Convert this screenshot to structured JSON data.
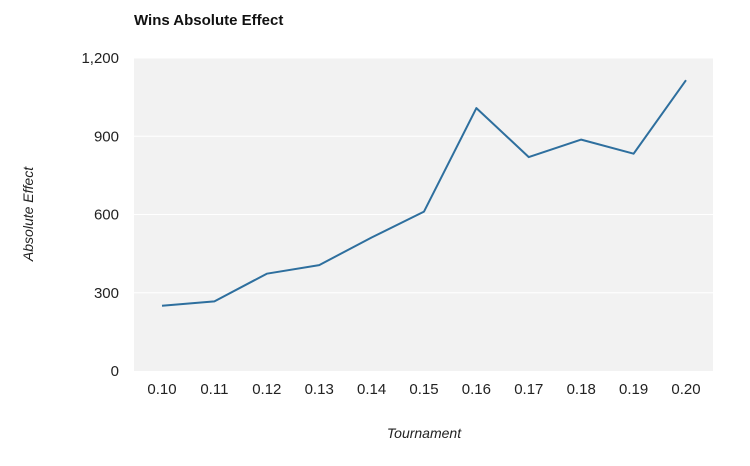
{
  "chart_data": {
    "type": "line",
    "title": "Wins Absolute Effect",
    "xlabel": "Tournament",
    "ylabel": "Absolute Effect",
    "categories": [
      "0.10",
      "0.11",
      "0.12",
      "0.13",
      "0.14",
      "0.15",
      "0.16",
      "0.17",
      "0.18",
      "0.19",
      "0.20"
    ],
    "series": [
      {
        "values": [
          250,
          267,
          373,
          406,
          512,
          611,
          1008,
          820,
          887,
          833,
          1115
        ]
      }
    ],
    "ylim": [
      0,
      1200
    ],
    "yticks": [
      0,
      300,
      600,
      900,
      1200
    ],
    "ytick_labels": [
      "0",
      "300",
      "600",
      "900",
      "1,200"
    ],
    "grid": true,
    "legend": "none",
    "colors": {
      "line": "#2e6f9e",
      "plot_background": "#f2f2f2",
      "gridline": "#ffffff"
    }
  }
}
